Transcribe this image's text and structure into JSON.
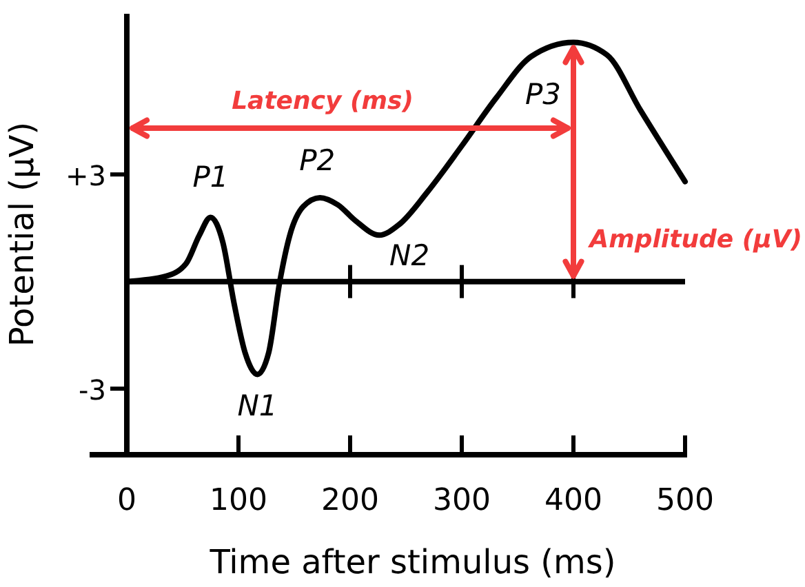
{
  "chart_data": {
    "type": "line",
    "xlabel": "Time after stimulus (ms)",
    "ylabel": "Potential (µV)",
    "x": [
      0,
      35,
      53,
      65,
      75,
      86,
      96,
      106,
      117,
      127,
      137,
      146,
      158,
      173,
      189,
      205,
      226,
      244,
      269,
      300,
      331,
      362,
      400,
      430,
      460,
      500
    ],
    "series": [
      {
        "color": "#000000",
        "values": [
          0,
          0.15,
          0.5,
          1.3,
          1.8,
          1.1,
          -0.6,
          -2,
          -2.6,
          -2,
          0,
          1.3,
          2.1,
          2.35,
          2.15,
          1.7,
          1.3,
          1.6,
          2.5,
          3.8,
          5.15,
          6.3,
          6.7,
          6.35,
          4.8,
          2.8
        ]
      }
    ],
    "xlim": [
      0,
      500
    ],
    "xticks": [
      0,
      100,
      200,
      300,
      400,
      500
    ],
    "ylim": [
      -4.85,
      7.5
    ],
    "yticks": [
      {
        "value": 3,
        "label": "+3"
      },
      {
        "value": -3,
        "label": "-3"
      }
    ],
    "ref_lines": [
      {
        "axis": "y",
        "value": 0,
        "color": "#000000"
      }
    ],
    "annotations": [
      {
        "text": "P1",
        "x": 75,
        "y": 1.8
      },
      {
        "text": "N1",
        "x": 117,
        "y": -2.6
      },
      {
        "text": "P2",
        "x": 173,
        "y": 2.35
      },
      {
        "text": "N2",
        "x": 226,
        "y": 1.3
      },
      {
        "text": "P3",
        "x": 400,
        "y": 6.7
      },
      "Latency (ms)",
      {
        "text": "Amplitude (µV)",
        "x": 400,
        "y": 6.7
      }
    ],
    "marker": "none",
    "line_style": "solid"
  }
}
